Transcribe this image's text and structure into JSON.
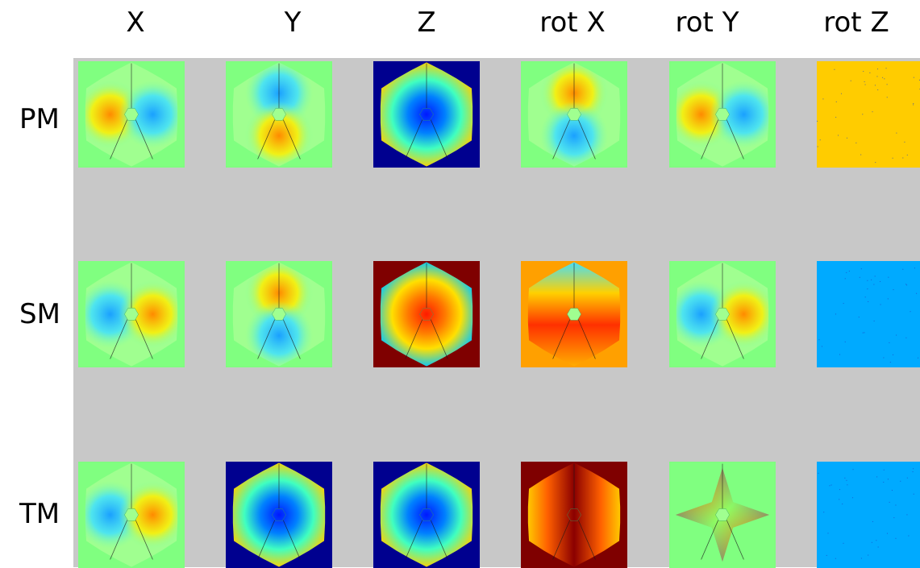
{
  "columns": [
    "X",
    "Y",
    "Z",
    "rot X",
    "rot Y",
    "rot Z"
  ],
  "rows": [
    "PM",
    "SM",
    "TM"
  ],
  "tiles": [
    [
      {
        "pattern": "lobes-x",
        "bg": "#80ff80",
        "signs": [
          1,
          -1
        ]
      },
      {
        "pattern": "lobes-y",
        "bg": "#80ff80",
        "signs": [
          -1,
          1
        ]
      },
      {
        "pattern": "radial",
        "bg": "#00008f",
        "center": "#0018ff",
        "edge": "#ffd000"
      },
      {
        "pattern": "lobes-y",
        "bg": "#80ff80",
        "signs": [
          1,
          -1
        ]
      },
      {
        "pattern": "lobes-x",
        "bg": "#80ff80",
        "signs": [
          1,
          -1
        ]
      },
      {
        "pattern": "uniform",
        "bg": "#ffcc00",
        "fill": "#ffcc00"
      }
    ],
    [
      {
        "pattern": "lobes-x",
        "bg": "#80ff80",
        "signs": [
          -1,
          1
        ]
      },
      {
        "pattern": "lobes-y",
        "bg": "#80ff80",
        "signs": [
          1,
          -1
        ]
      },
      {
        "pattern": "radial",
        "bg": "#7f0000",
        "center": "#ff1a00",
        "edge": "#00c8ff"
      },
      {
        "pattern": "rotx-sm",
        "bg": "#ffa000",
        "signs": [
          1,
          -1
        ]
      },
      {
        "pattern": "lobes-x",
        "bg": "#80ff80",
        "signs": [
          -1,
          1
        ]
      },
      {
        "pattern": "uniform",
        "bg": "#00aaff",
        "fill": "#00aaff"
      }
    ],
    [
      {
        "pattern": "lobes-x",
        "bg": "#80ff80",
        "signs": [
          -1,
          1
        ]
      },
      {
        "pattern": "radial",
        "bg": "#00008f",
        "center": "#0018ff",
        "edge": "#ffd000"
      },
      {
        "pattern": "radial",
        "bg": "#00008f",
        "center": "#0018ff",
        "edge": "#ffd000"
      },
      {
        "pattern": "vertical",
        "bg": "#7f0000",
        "center": "#8b0000",
        "edge": "#ffee00"
      },
      {
        "pattern": "saddle",
        "bg": "#80ff80",
        "signs": [
          1,
          -1
        ]
      },
      {
        "pattern": "uniform",
        "bg": "#00aaff",
        "fill": "#00aaff"
      }
    ]
  ]
}
